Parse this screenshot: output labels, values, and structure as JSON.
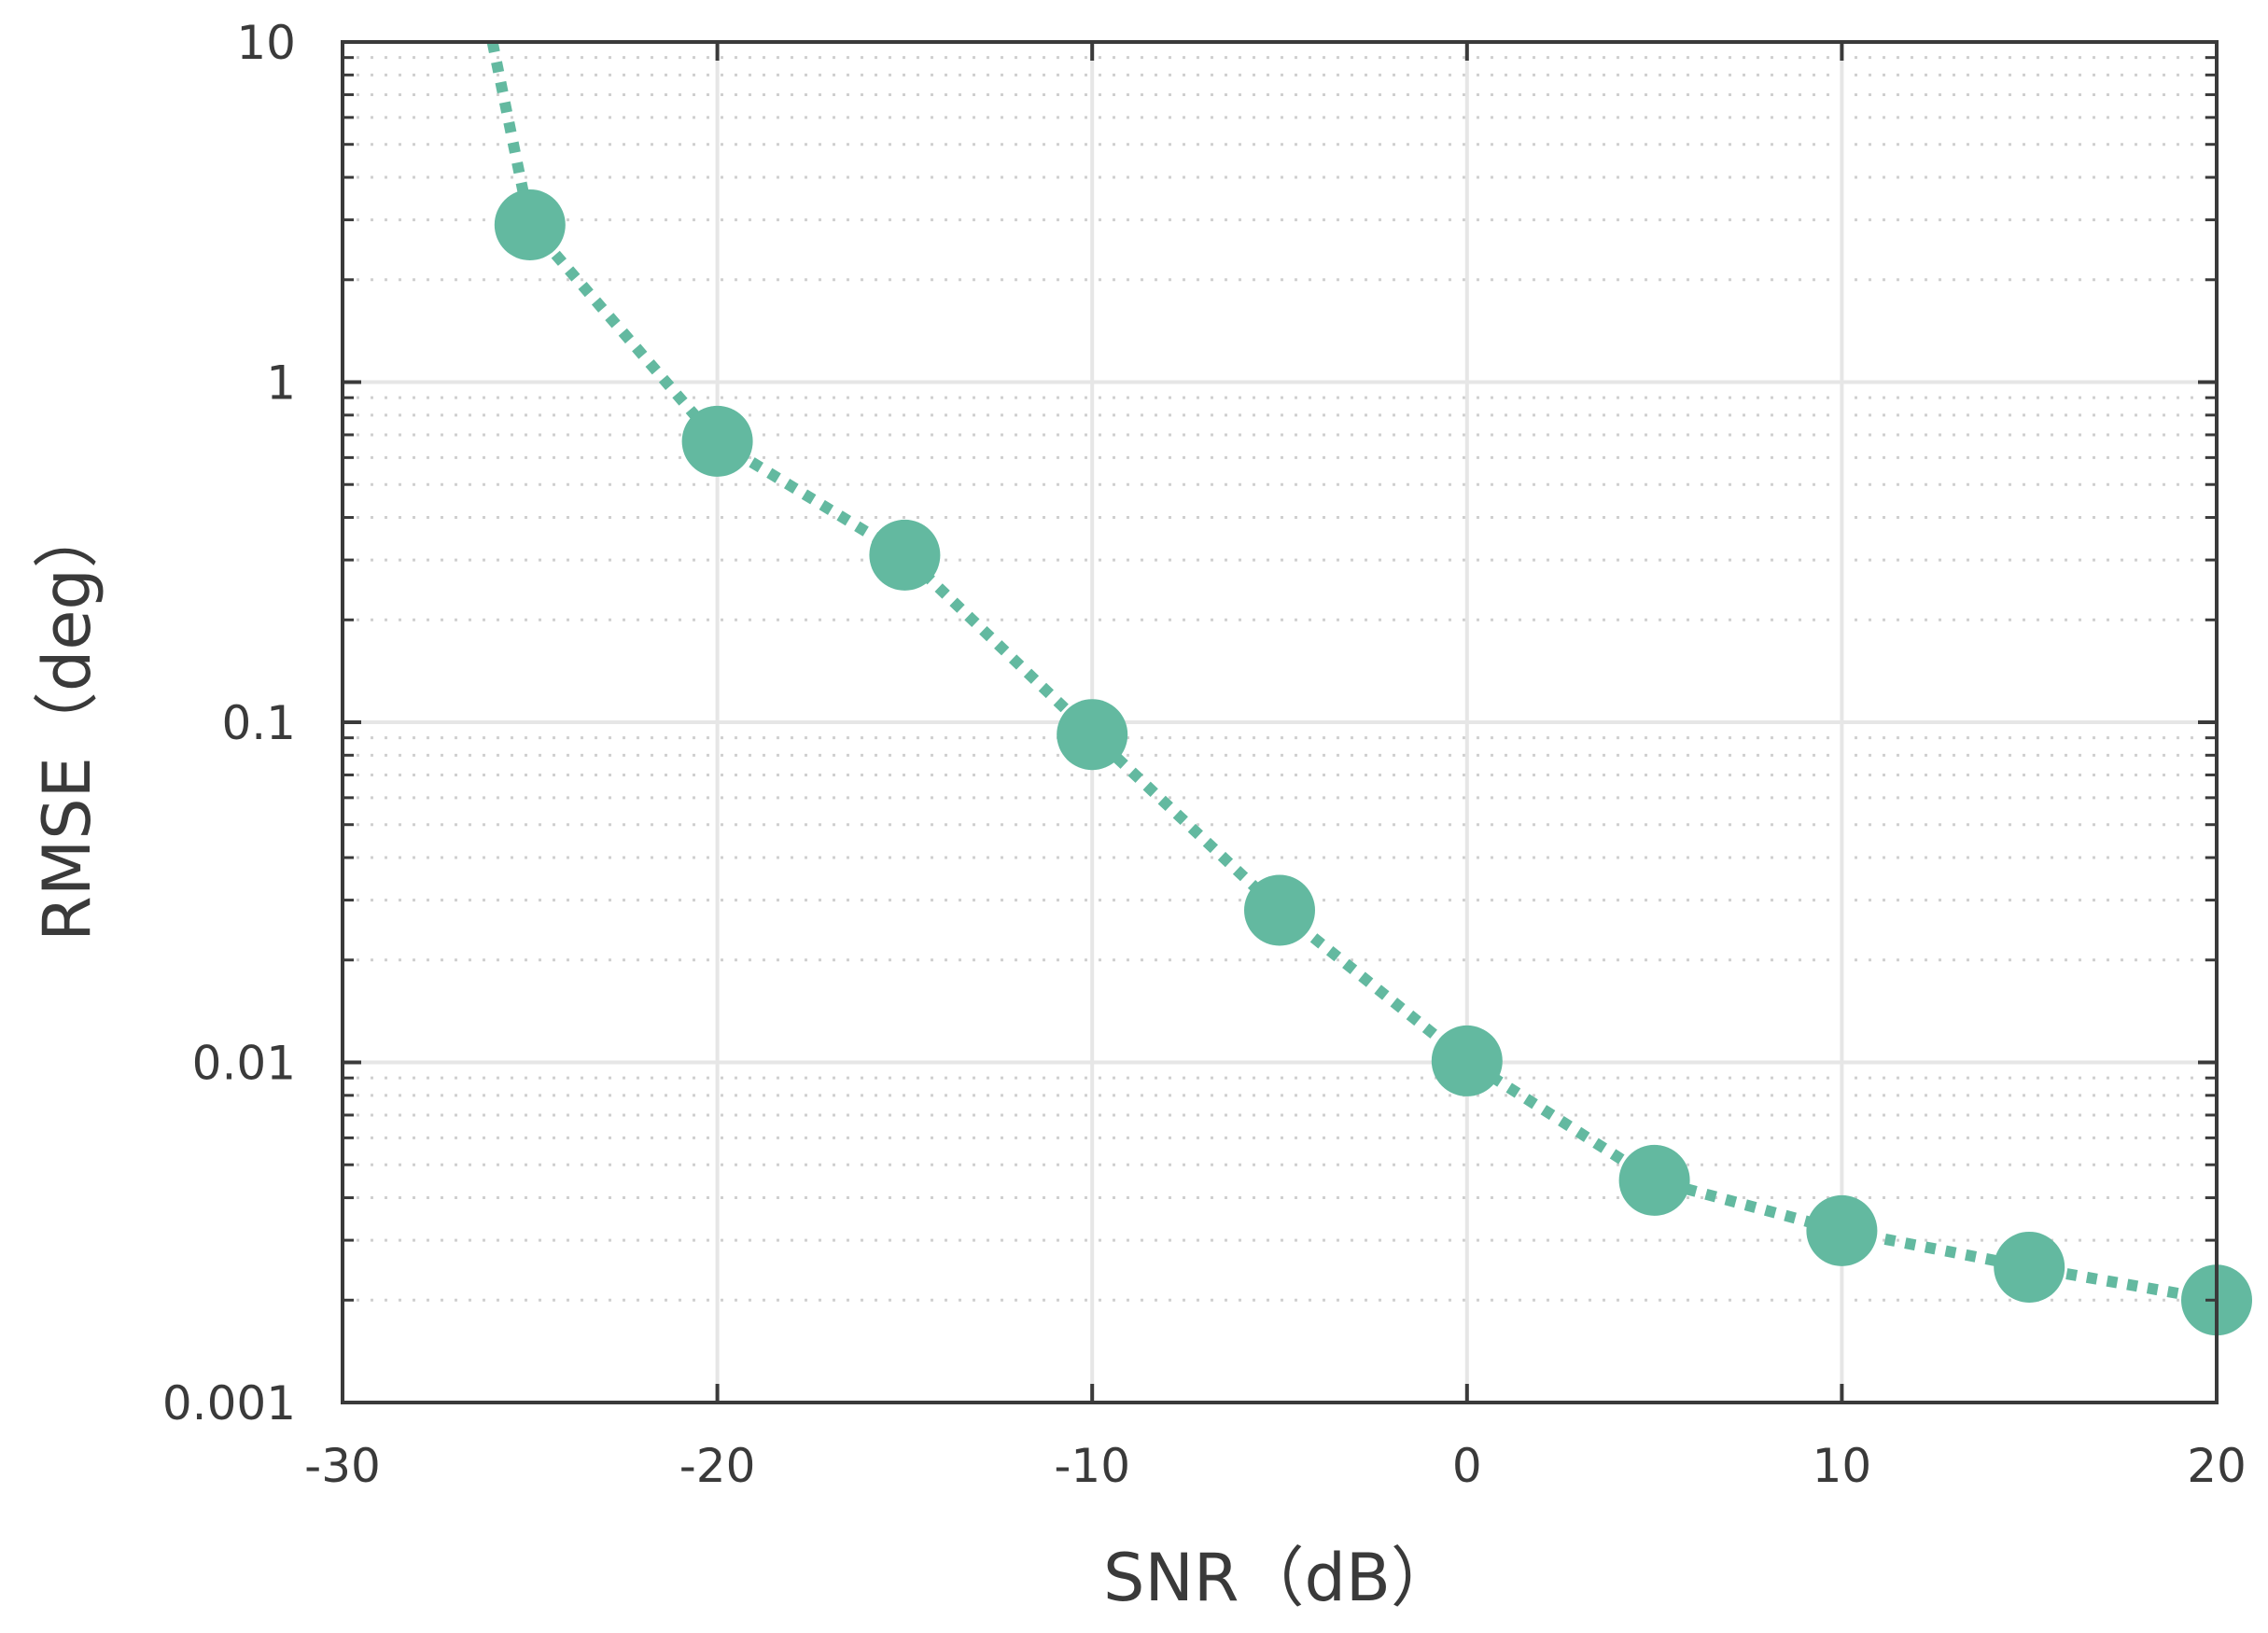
{
  "chart_data": {
    "type": "line",
    "xlabel": "SNR（dB）",
    "ylabel": "RMSE（deg）",
    "xlim": [
      -30,
      20
    ],
    "ylim": [
      0.001,
      10
    ],
    "yscale": "log",
    "grid": true,
    "minor_grid": true,
    "x_ticks": [
      -30,
      -20,
      -10,
      0,
      10,
      20
    ],
    "x_tick_labels": [
      "-30",
      "-20",
      "-10",
      "0",
      "10",
      "20"
    ],
    "y_ticks": [
      0.001,
      0.01,
      0.1,
      1,
      10
    ],
    "y_tick_labels": [
      "0.001",
      "0.01",
      "0.1",
      "1",
      "10"
    ],
    "series": [
      {
        "line_style": "dotted",
        "marker": "circle",
        "color": "#63b9a0",
        "x": [
          -26,
          -25,
          -20,
          -15,
          -10,
          -5,
          0,
          5,
          10,
          15,
          20
        ],
        "y": [
          10,
          2.9,
          0.67,
          0.31,
          0.092,
          0.028,
          0.0101,
          0.0045,
          0.0032,
          0.0025,
          0.002
        ],
        "marker_x": [
          -25,
          -20,
          -15,
          -10,
          -5,
          0,
          5,
          10,
          15,
          20
        ]
      }
    ]
  }
}
